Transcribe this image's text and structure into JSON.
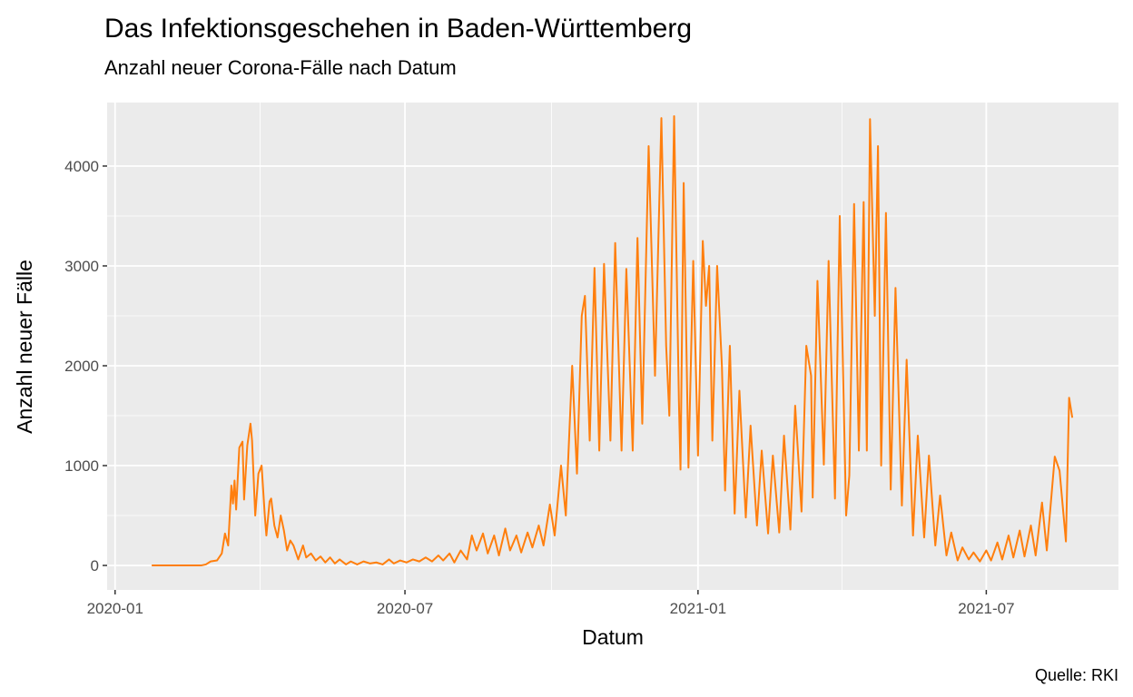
{
  "chart_data": {
    "type": "line",
    "title": "Das Infektionsgeschehen in Baden-Württemberg",
    "subtitle": "Anzahl neuer Corona-Fälle nach Datum",
    "x_label": "Datum",
    "y_label": "Anzahl neuer Fälle",
    "caption": "Quelle: RKI",
    "color": "#ff7f0e",
    "grid": true,
    "minor_grid": true,
    "xlim": [
      "2019-12-27",
      "2021-09-22"
    ],
    "xticks": [
      {
        "value": "2020-01-01",
        "label": "2020-01"
      },
      {
        "value": "2020-07-01",
        "label": "2020-07"
      },
      {
        "value": "2021-01-01",
        "label": "2021-01"
      },
      {
        "value": "2021-07-01",
        "label": "2021-07"
      }
    ],
    "ylim": [
      -245,
      4636
    ],
    "yticks": [
      0,
      1000,
      2000,
      3000,
      4000
    ],
    "x": [
      "2020-01-24",
      "2020-02-24",
      "2020-02-27",
      "2020-03-01",
      "2020-03-05",
      "2020-03-08",
      "2020-03-10",
      "2020-03-12",
      "2020-03-14",
      "2020-03-15",
      "2020-03-16",
      "2020-03-17",
      "2020-03-19",
      "2020-03-21",
      "2020-03-22",
      "2020-03-24",
      "2020-03-26",
      "2020-03-27",
      "2020-03-29",
      "2020-03-31",
      "2020-04-02",
      "2020-04-04",
      "2020-04-05",
      "2020-04-07",
      "2020-04-08",
      "2020-04-10",
      "2020-04-12",
      "2020-04-14",
      "2020-04-16",
      "2020-04-18",
      "2020-04-20",
      "2020-04-22",
      "2020-04-25",
      "2020-04-28",
      "2020-04-30",
      "2020-05-03",
      "2020-05-06",
      "2020-05-09",
      "2020-05-12",
      "2020-05-15",
      "2020-05-18",
      "2020-05-21",
      "2020-05-25",
      "2020-05-28",
      "2020-06-01",
      "2020-06-05",
      "2020-06-09",
      "2020-06-13",
      "2020-06-17",
      "2020-06-21",
      "2020-06-24",
      "2020-06-28",
      "2020-07-02",
      "2020-07-06",
      "2020-07-10",
      "2020-07-14",
      "2020-07-18",
      "2020-07-22",
      "2020-07-25",
      "2020-07-29",
      "2020-08-01",
      "2020-08-05",
      "2020-08-09",
      "2020-08-12",
      "2020-08-15",
      "2020-08-19",
      "2020-08-22",
      "2020-08-26",
      "2020-08-29",
      "2020-09-02",
      "2020-09-05",
      "2020-09-09",
      "2020-09-12",
      "2020-09-16",
      "2020-09-19",
      "2020-09-23",
      "2020-09-26",
      "2020-09-30",
      "2020-10-03",
      "2020-10-07",
      "2020-10-10",
      "2020-10-14",
      "2020-10-17",
      "2020-10-20",
      "2020-10-22",
      "2020-10-25",
      "2020-10-28",
      "2020-10-31",
      "2020-11-03",
      "2020-11-07",
      "2020-11-10",
      "2020-11-14",
      "2020-11-17",
      "2020-11-21",
      "2020-11-24",
      "2020-11-27",
      "2020-12-01",
      "2020-12-05",
      "2020-12-09",
      "2020-12-12",
      "2020-12-14",
      "2020-12-17",
      "2020-12-20",
      "2020-12-21",
      "2020-12-23",
      "2020-12-26",
      "2020-12-29",
      "2021-01-01",
      "2021-01-04",
      "2021-01-06",
      "2021-01-08",
      "2021-01-10",
      "2021-01-13",
      "2021-01-16",
      "2021-01-18",
      "2021-01-21",
      "2021-01-24",
      "2021-01-27",
      "2021-01-31",
      "2021-02-03",
      "2021-02-07",
      "2021-02-10",
      "2021-02-14",
      "2021-02-17",
      "2021-02-21",
      "2021-02-24",
      "2021-02-28",
      "2021-03-03",
      "2021-03-07",
      "2021-03-10",
      "2021-03-13",
      "2021-03-14",
      "2021-03-17",
      "2021-03-21",
      "2021-03-24",
      "2021-03-28",
      "2021-03-31",
      "2021-04-04",
      "2021-04-06",
      "2021-04-09",
      "2021-04-12",
      "2021-04-15",
      "2021-04-17",
      "2021-04-19",
      "2021-04-22",
      "2021-04-24",
      "2021-04-26",
      "2021-04-29",
      "2021-05-02",
      "2021-05-05",
      "2021-05-09",
      "2021-05-12",
      "2021-05-16",
      "2021-05-19",
      "2021-05-23",
      "2021-05-26",
      "2021-05-30",
      "2021-06-02",
      "2021-06-06",
      "2021-06-09",
      "2021-06-13",
      "2021-06-16",
      "2021-06-20",
      "2021-06-23",
      "2021-06-27",
      "2021-07-01",
      "2021-07-04",
      "2021-07-08",
      "2021-07-11",
      "2021-07-15",
      "2021-07-18",
      "2021-07-22",
      "2021-07-25",
      "2021-07-29",
      "2021-08-01",
      "2021-08-05",
      "2021-08-08",
      "2021-08-13",
      "2021-08-16",
      "2021-08-20",
      "2021-08-22",
      "2021-08-24"
    ],
    "values": [
      0,
      0,
      10,
      40,
      50,
      120,
      320,
      200,
      800,
      620,
      850,
      560,
      1180,
      1240,
      660,
      1200,
      1420,
      1250,
      500,
      920,
      1000,
      500,
      300,
      640,
      670,
      400,
      280,
      500,
      350,
      150,
      250,
      200,
      60,
      200,
      80,
      120,
      50,
      90,
      30,
      80,
      20,
      60,
      10,
      40,
      10,
      40,
      20,
      30,
      10,
      60,
      20,
      50,
      30,
      60,
      40,
      80,
      40,
      100,
      50,
      120,
      30,
      150,
      60,
      300,
      150,
      320,
      120,
      300,
      100,
      370,
      150,
      300,
      130,
      330,
      180,
      400,
      200,
      610,
      300,
      1000,
      500,
      2000,
      920,
      2500,
      2700,
      1250,
      2980,
      1150,
      3020,
      1250,
      3230,
      1150,
      2970,
      1150,
      3280,
      1420,
      4200,
      1900,
      4480,
      2200,
      1500,
      4500,
      1650,
      960,
      3830,
      980,
      3050,
      1100,
      3250,
      2600,
      3000,
      1250,
      3000,
      2000,
      750,
      2200,
      520,
      1750,
      480,
      1400,
      400,
      1150,
      320,
      1100,
      330,
      1300,
      360,
      1600,
      540,
      2200,
      1900,
      680,
      2850,
      1010,
      3050,
      670,
      3500,
      500,
      900,
      3620,
      1150,
      3640,
      1150,
      4470,
      2500,
      4200,
      1000,
      3530,
      760,
      2780,
      600,
      2060,
      300,
      1300,
      280,
      1100,
      200,
      700,
      100,
      330,
      50,
      180,
      60,
      130,
      40,
      150,
      50,
      230,
      60,
      300,
      80,
      350,
      90,
      400,
      100,
      630,
      150,
      1090,
      950,
      240,
      1680,
      1480
    ]
  }
}
